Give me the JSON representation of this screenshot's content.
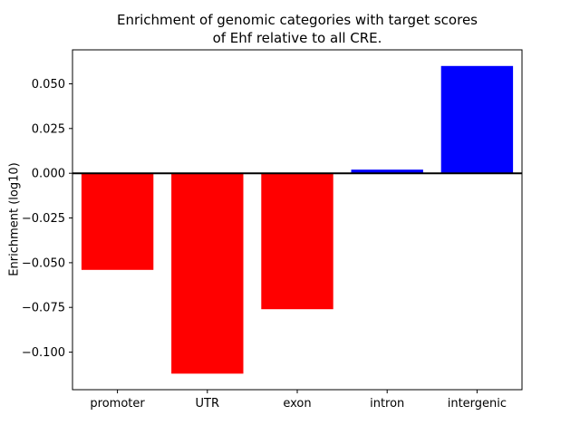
{
  "chart_data": {
    "type": "bar",
    "title": "Enrichment of genomic categories with target scores\nof Ehf relative to all CRE.",
    "xlabel": "",
    "ylabel": "Enrichment (log10)",
    "categories": [
      "promoter",
      "UTR",
      "exon",
      "intron",
      "intergenic"
    ],
    "values": [
      -0.054,
      -0.112,
      -0.076,
      0.002,
      0.06
    ],
    "bar_colors": [
      "#ff0000",
      "#ff0000",
      "#ff0000",
      "#0000ff",
      "#0000ff"
    ],
    "ylim": [
      -0.121,
      0.069
    ],
    "ytick_values": [
      -0.1,
      -0.075,
      -0.05,
      -0.025,
      0.0,
      0.025,
      0.05
    ],
    "ytick_labels": [
      "−0.100",
      "−0.075",
      "−0.050",
      "−0.025",
      "0.000",
      "0.025",
      "0.050"
    ],
    "zero_line": true,
    "grid": false,
    "legend": "none",
    "negative_color": "#ff0000",
    "positive_color": "#0000ff",
    "axis_color": "#000000",
    "background_color": "#ffffff"
  }
}
